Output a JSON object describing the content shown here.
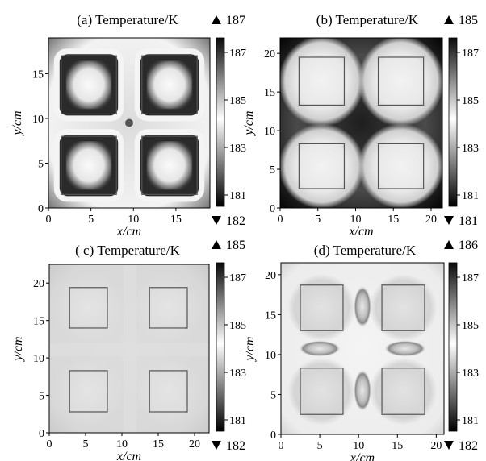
{
  "chart_data": [
    {
      "type": "heatmap",
      "panel": "(a)",
      "title": "(a) Temperature/K",
      "xlabel": "x/cm",
      "ylabel": "y/cm",
      "xlim": [
        0,
        19
      ],
      "ylim": [
        0,
        19
      ],
      "xticks": [
        "0",
        "5",
        "10",
        "15"
      ],
      "yticks": [
        "0",
        "5",
        "10",
        "15"
      ],
      "colorbar_ticks": [
        "187",
        "185",
        "183",
        "181"
      ],
      "max_label": "187",
      "min_label": "182",
      "squares": [
        [
          1.5,
          1.5,
          8.0,
          8.0
        ],
        [
          11.0,
          1.5,
          17.5,
          8.0
        ],
        [
          1.5,
          10.5,
          8.0,
          17.0
        ],
        [
          11.0,
          10.5,
          17.5,
          17.0
        ]
      ]
    },
    {
      "type": "heatmap",
      "panel": "(b)",
      "title": "(b) Temperature/K",
      "xlabel": "x/cm",
      "ylabel": "y/cm",
      "xlim": [
        0,
        21.5
      ],
      "ylim": [
        0,
        22
      ],
      "xticks": [
        "0",
        "5",
        "10",
        "15",
        "20"
      ],
      "yticks": [
        "0",
        "5",
        "10",
        "15",
        "20"
      ],
      "colorbar_ticks": [
        "187",
        "185",
        "183",
        "181"
      ],
      "max_label": "185",
      "min_label": "181",
      "squares": [
        [
          2.5,
          2.5,
          8.5,
          8.3
        ],
        [
          13.0,
          2.5,
          19.0,
          8.3
        ],
        [
          2.5,
          13.3,
          8.5,
          19.5
        ],
        [
          13.0,
          13.3,
          19.0,
          19.5
        ]
      ]
    },
    {
      "type": "heatmap",
      "panel": "(c)",
      "title": "( c) Temperature/K",
      "xlabel": "x/cm",
      "ylabel": "y/cm",
      "xlim": [
        0,
        22
      ],
      "ylim": [
        0,
        22.5
      ],
      "xticks": [
        "0",
        "5",
        "10",
        "15",
        "20"
      ],
      "yticks": [
        "0",
        "5",
        "10",
        "15",
        "20"
      ],
      "colorbar_ticks": [
        "187",
        "185",
        "183",
        "181"
      ],
      "max_label": "185",
      "min_label": "182",
      "squares": [
        [
          2.8,
          2.8,
          8.0,
          8.3
        ],
        [
          13.8,
          2.8,
          19.0,
          8.3
        ],
        [
          2.8,
          14.0,
          8.0,
          19.4
        ],
        [
          13.8,
          14.0,
          19.0,
          19.4
        ]
      ]
    },
    {
      "type": "heatmap",
      "panel": "(d)",
      "title": "(d) Temperature/K",
      "xlabel": "x/cm",
      "ylabel": "y/cm",
      "xlim": [
        0,
        21
      ],
      "ylim": [
        0,
        21.5
      ],
      "xticks": [
        "0",
        "5",
        "10",
        "15",
        "20"
      ],
      "yticks": [
        "0",
        "5",
        "10",
        "15",
        "20"
      ],
      "colorbar_ticks": [
        "187",
        "185",
        "183",
        "181"
      ],
      "max_label": "186",
      "min_label": "182",
      "squares": [
        [
          2.5,
          2.5,
          8.0,
          8.3
        ],
        [
          13.0,
          2.5,
          18.5,
          8.3
        ],
        [
          2.5,
          13.0,
          8.0,
          18.7
        ],
        [
          13.0,
          13.0,
          18.5,
          18.7
        ]
      ]
    }
  ]
}
